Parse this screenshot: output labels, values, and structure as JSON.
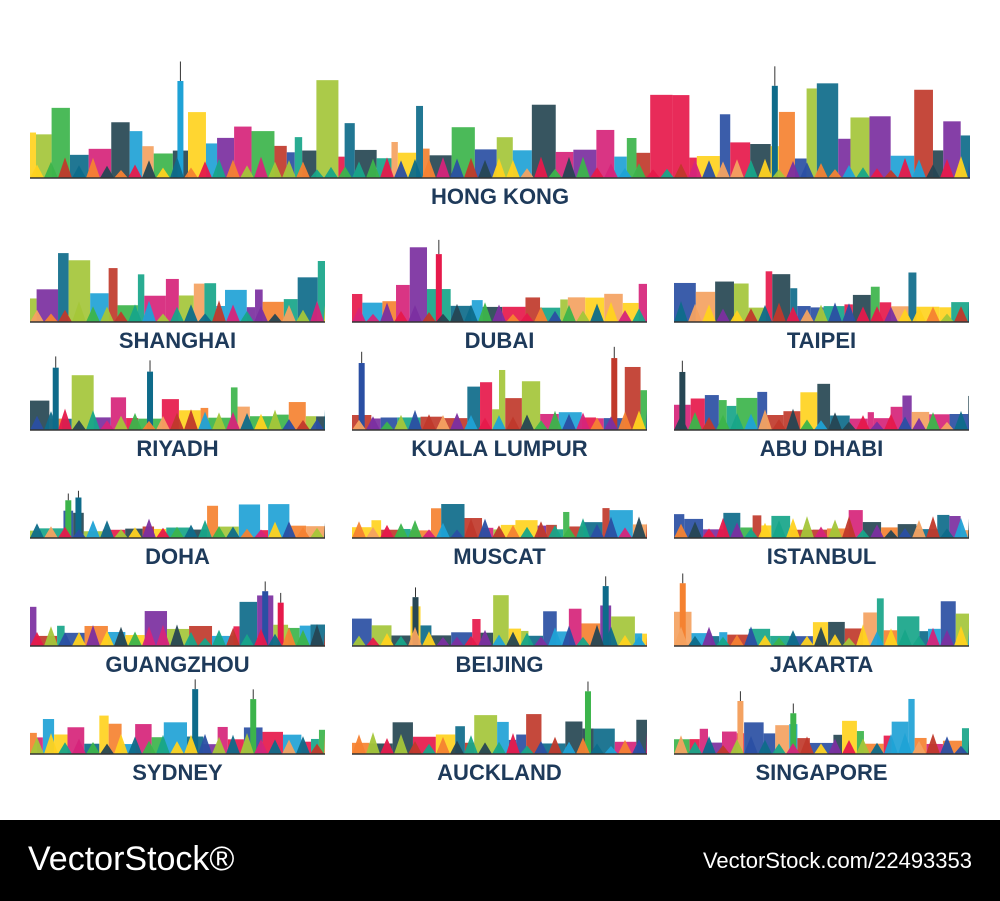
{
  "header": {
    "title": "HONG KONG"
  },
  "cities": [
    "SHANGHAI",
    "DUBAI",
    "TAIPEI",
    "RIYADH",
    "KUALA LUMPUR",
    "ABU DHABI",
    "DOHA",
    "MUSCAT",
    "ISTANBUL",
    "GUANGZHOU",
    "BEIJING",
    "JAKARTA",
    "SYDNEY",
    "AUCKLAND",
    "SINGAPORE"
  ],
  "footer": {
    "brand": "VectorStock®",
    "id": "VectorStock.com/22493353"
  }
}
